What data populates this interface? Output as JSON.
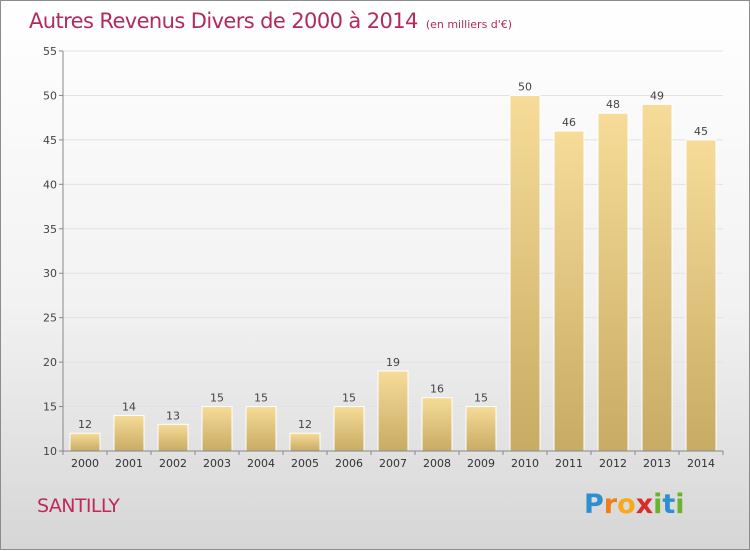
{
  "title": "Autres Revenus Divers de 2000 à 2014",
  "subtitle": "(en milliers d'€)",
  "place_name": "SANTILLY",
  "logo": {
    "text": "Proxiti",
    "colors": [
      "#2e8fd0",
      "#f07c1a",
      "#f7a81b",
      "#d92b2b",
      "#6ab42d",
      "#2e8fd0",
      "#6ab42d"
    ]
  },
  "chart_data": {
    "type": "bar",
    "categories": [
      "2000",
      "2001",
      "2002",
      "2003",
      "2004",
      "2005",
      "2006",
      "2007",
      "2008",
      "2009",
      "2010",
      "2011",
      "2012",
      "2013",
      "2014"
    ],
    "values": [
      12,
      14,
      13,
      15,
      15,
      12,
      15,
      19,
      16,
      15,
      50,
      46,
      48,
      49,
      45
    ],
    "data_labels": [
      "12",
      "14",
      "13",
      "15",
      "15",
      "12",
      "15",
      "19",
      "16",
      "15",
      "50",
      "46",
      "48",
      "49",
      "45"
    ],
    "yticks": [
      10,
      15,
      20,
      25,
      30,
      35,
      40,
      45,
      50,
      55
    ],
    "ylim": [
      10,
      55
    ],
    "grid": "horizontal",
    "legend": "none",
    "bar_color": "#e8c97a"
  }
}
